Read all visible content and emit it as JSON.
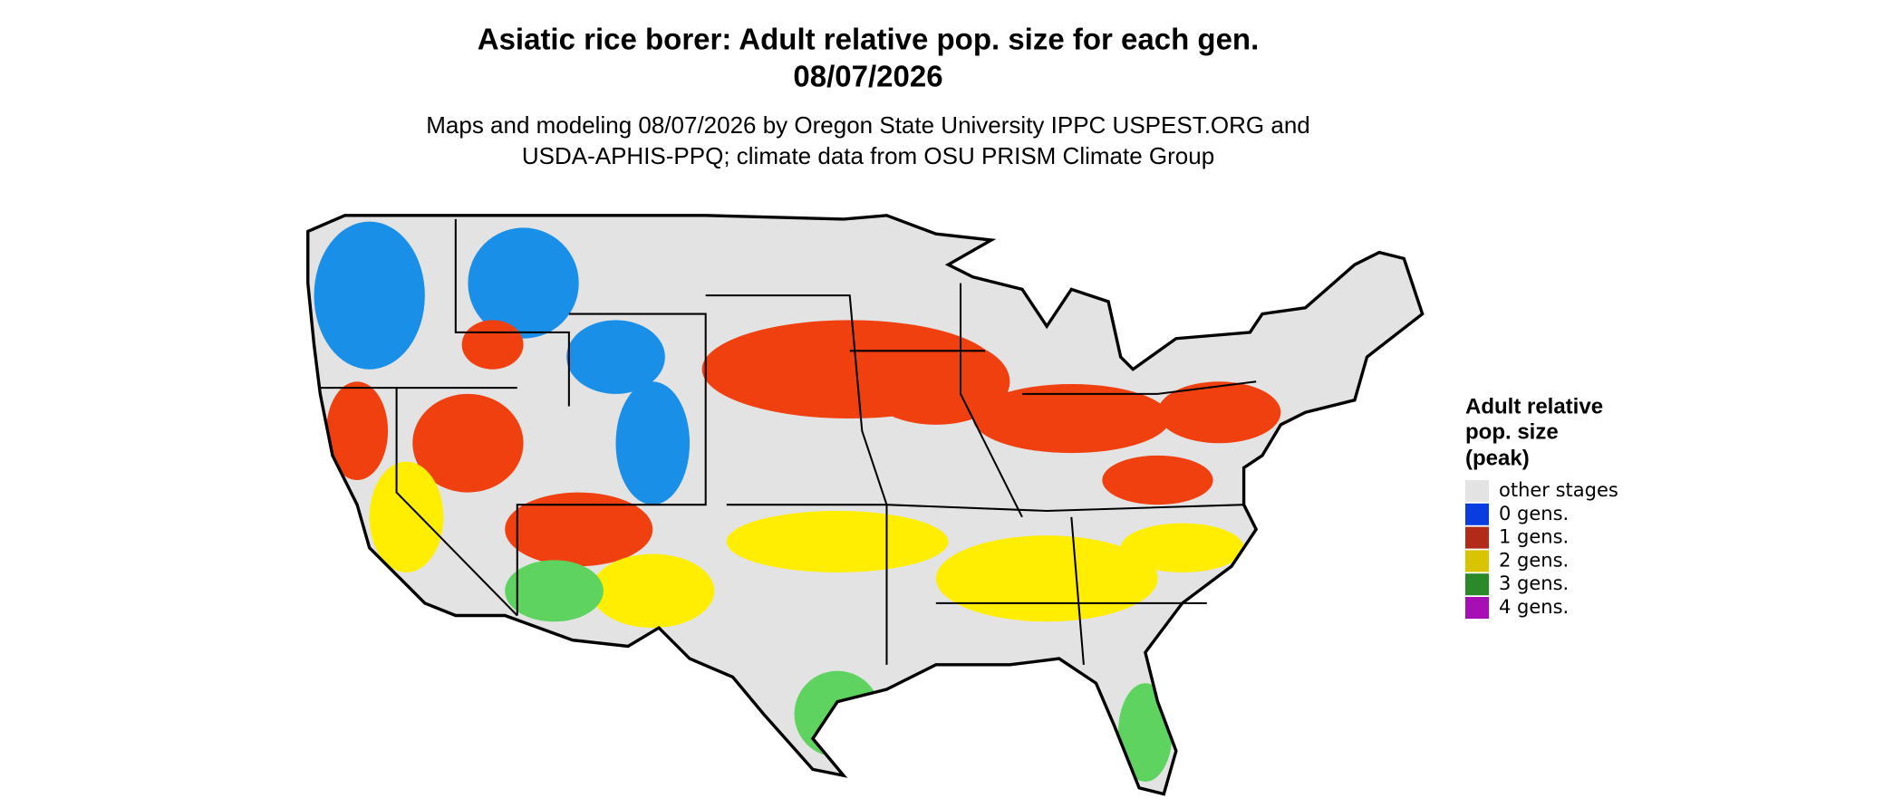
{
  "header": {
    "title_lines": [
      "Asiatic rice borer: Adult relative pop. size for each gen.",
      "08/07/2026"
    ],
    "subtitle_lines": [
      "Maps and modeling 08/07/2026 by Oregon State University IPPC USPEST.ORG and",
      "USDA-APHIS-PPQ; climate data from OSU PRISM Climate Group"
    ]
  },
  "legend": {
    "title_lines": [
      "Adult relative",
      "pop. size",
      "(peak)"
    ],
    "items": [
      {
        "label": "other stages",
        "color": "#e3e3e3"
      },
      {
        "label": "0 gens.",
        "color": "#0a3de0"
      },
      {
        "label": "1 gens.",
        "color": "#b22a18"
      },
      {
        "label": "2 gens.",
        "color": "#d8c400"
      },
      {
        "label": "3 gens.",
        "color": "#2a8a2a"
      },
      {
        "label": "4 gens.",
        "color": "#a70fb5"
      }
    ]
  }
}
